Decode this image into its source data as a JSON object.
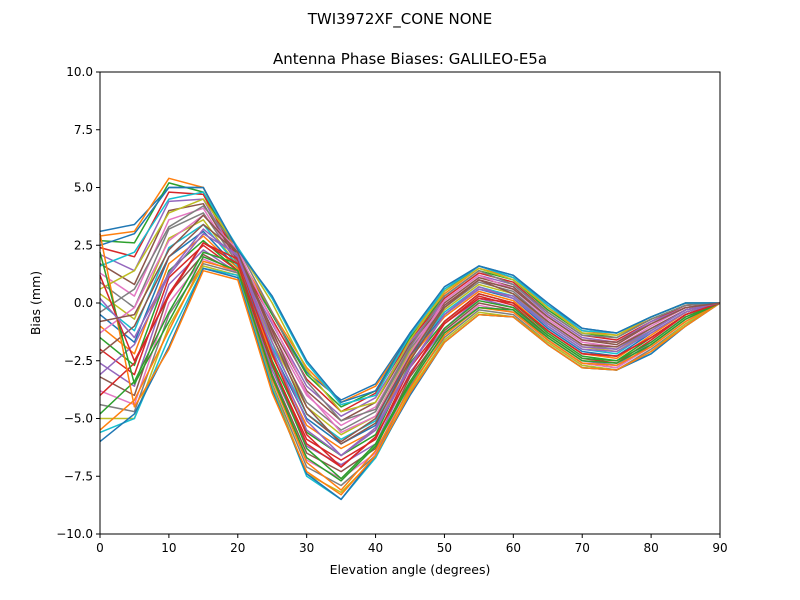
{
  "figure": {
    "suptitle": "TWI3972XF_CONE  NONE"
  },
  "chart_data": {
    "type": "line",
    "title": "Antenna Phase Biases: GALILEO-E5a",
    "xlabel": "Elevation angle (degrees)",
    "ylabel": "Bias (mm)",
    "xlim": [
      0,
      90
    ],
    "ylim": [
      -10,
      10
    ],
    "xticks": [
      0,
      10,
      20,
      30,
      40,
      50,
      60,
      70,
      80,
      90
    ],
    "yticks": [
      -10,
      -7.5,
      -5,
      -2.5,
      0,
      2.5,
      5,
      7.5,
      10
    ],
    "xtick_labels": [
      "0",
      "10",
      "20",
      "30",
      "40",
      "50",
      "60",
      "70",
      "80",
      "90"
    ],
    "ytick_labels": [
      "−10.0",
      "−7.5",
      "−5.0",
      "−2.5",
      "0.0",
      "2.5",
      "5.0",
      "7.5",
      "10.0"
    ],
    "grid": false,
    "legend": "none",
    "x": [
      0,
      5,
      10,
      15,
      20,
      25,
      30,
      35,
      40,
      45,
      50,
      55,
      60,
      65,
      70,
      75,
      80,
      85,
      90
    ],
    "color_cycle": [
      "#1f77b4",
      "#ff7f0e",
      "#2ca02c",
      "#d62728",
      "#9467bd",
      "#8c564b",
      "#e377c2",
      "#7f7f7f",
      "#bcbd22",
      "#17becf"
    ],
    "series": [
      {
        "values": [
          3.1,
          3.4,
          5.0,
          5.0,
          2.0,
          -0.5,
          -3.0,
          -4.2,
          -3.5,
          -1.3,
          0.5,
          1.6,
          1.2,
          -0.1,
          -1.1,
          -1.3,
          -0.6,
          0.0,
          0.0
        ]
      },
      {
        "values": [
          2.9,
          3.1,
          5.4,
          5.0,
          2.1,
          -0.4,
          -2.8,
          -4.3,
          -3.6,
          -1.4,
          0.4,
          1.5,
          1.1,
          -0.2,
          -1.2,
          -1.4,
          -0.7,
          -0.1,
          0.0
        ]
      },
      {
        "values": [
          2.7,
          2.6,
          5.2,
          4.8,
          2.0,
          -0.5,
          -3.1,
          -4.5,
          -3.8,
          -1.5,
          0.3,
          1.4,
          1.0,
          -0.3,
          -1.3,
          -1.5,
          -0.7,
          -0.1,
          0.0
        ]
      },
      {
        "values": [
          2.4,
          2.0,
          4.8,
          4.7,
          1.9,
          -0.7,
          -3.3,
          -4.7,
          -3.9,
          -1.6,
          0.2,
          1.3,
          0.9,
          -0.4,
          -1.4,
          -1.6,
          -0.8,
          -0.1,
          0.0
        ]
      },
      {
        "values": [
          2.1,
          1.4,
          4.4,
          4.5,
          1.8,
          -0.9,
          -3.6,
          -4.9,
          -4.1,
          -1.7,
          0.1,
          1.2,
          0.8,
          -0.5,
          -1.5,
          -1.7,
          -0.8,
          -0.2,
          0.0
        ]
      },
      {
        "values": [
          1.7,
          0.8,
          4.0,
          4.3,
          1.8,
          -1.1,
          -3.8,
          -5.1,
          -4.3,
          -1.8,
          0.0,
          1.1,
          0.7,
          -0.6,
          -1.6,
          -1.8,
          -0.9,
          -0.2,
          0.0
        ]
      },
      {
        "values": [
          1.3,
          0.3,
          3.6,
          4.1,
          1.7,
          -1.3,
          -4.0,
          -5.3,
          -4.5,
          -1.9,
          -0.1,
          1.0,
          0.6,
          -0.7,
          -1.7,
          -1.9,
          -1.0,
          -0.2,
          0.0
        ]
      },
      {
        "values": [
          0.9,
          -0.2,
          3.2,
          3.9,
          1.7,
          -1.5,
          -4.3,
          -5.5,
          -4.7,
          -2.0,
          -0.2,
          0.9,
          0.5,
          -0.8,
          -1.8,
          -2.0,
          -1.1,
          -0.3,
          0.0
        ]
      },
      {
        "values": [
          0.4,
          -0.7,
          2.8,
          3.6,
          1.6,
          -1.7,
          -4.5,
          -5.7,
          -4.9,
          -2.1,
          -0.3,
          0.8,
          0.4,
          -0.9,
          -1.9,
          -2.1,
          -1.2,
          -0.3,
          0.0
        ]
      },
      {
        "values": [
          0.0,
          -1.2,
          2.4,
          3.4,
          1.6,
          -1.9,
          -4.8,
          -5.9,
          -5.1,
          -2.2,
          -0.4,
          0.7,
          0.3,
          -1.0,
          -2.0,
          -2.2,
          -1.2,
          -0.3,
          0.0
        ]
      },
      {
        "values": [
          -0.5,
          -1.7,
          2.0,
          3.1,
          1.5,
          -2.1,
          -5.0,
          -6.1,
          -5.3,
          -2.3,
          -0.5,
          0.6,
          0.2,
          -1.1,
          -2.1,
          -2.3,
          -1.3,
          -0.4,
          0.0
        ]
      },
      {
        "values": [
          -1.0,
          -2.2,
          1.7,
          2.9,
          1.5,
          -2.3,
          -5.3,
          -6.3,
          -5.5,
          -2.4,
          -0.6,
          0.5,
          0.1,
          -1.2,
          -2.2,
          -2.4,
          -1.4,
          -0.4,
          0.0
        ]
      },
      {
        "values": [
          -1.5,
          -2.7,
          1.4,
          2.7,
          1.4,
          -2.5,
          -5.6,
          -6.6,
          -5.7,
          -2.6,
          -0.8,
          0.4,
          0.0,
          -1.3,
          -2.3,
          -2.5,
          -1.5,
          -0.5,
          0.0
        ]
      },
      {
        "values": [
          -2.0,
          -3.1,
          1.1,
          2.5,
          1.4,
          -2.7,
          -5.9,
          -6.8,
          -5.9,
          -2.8,
          -0.9,
          0.3,
          -0.1,
          -1.4,
          -2.4,
          -2.6,
          -1.6,
          -0.5,
          0.0
        ]
      },
      {
        "values": [
          -2.6,
          -3.6,
          0.8,
          2.3,
          1.3,
          -2.9,
          -6.2,
          -7.0,
          -6.1,
          -3.0,
          -1.1,
          0.2,
          -0.2,
          -1.5,
          -2.5,
          -2.7,
          -1.7,
          -0.6,
          0.0
        ]
      },
      {
        "values": [
          -3.2,
          -4.0,
          0.4,
          2.1,
          1.3,
          -3.1,
          -6.5,
          -7.3,
          -6.3,
          -3.2,
          -1.2,
          0.0,
          -0.3,
          -1.6,
          -2.6,
          -2.8,
          -1.8,
          -0.7,
          0.0
        ]
      },
      {
        "values": [
          -3.8,
          -4.4,
          0.0,
          1.9,
          1.3,
          -3.3,
          -6.8,
          -7.6,
          -6.5,
          -3.4,
          -1.3,
          -0.1,
          -0.4,
          -1.6,
          -2.6,
          -2.8,
          -1.9,
          -0.8,
          0.0
        ]
      },
      {
        "values": [
          -4.4,
          -4.7,
          -0.5,
          1.7,
          1.3,
          -3.5,
          -7.1,
          -7.9,
          -6.6,
          -3.6,
          -1.5,
          -0.3,
          -0.5,
          -1.7,
          -2.7,
          -2.9,
          -2.0,
          -0.9,
          0.0
        ]
      },
      {
        "values": [
          -5.0,
          -5.0,
          -1.0,
          1.6,
          1.2,
          -3.6,
          -7.4,
          -8.2,
          -6.7,
          -3.8,
          -1.6,
          -0.4,
          -0.6,
          -1.7,
          -2.7,
          -2.9,
          -2.1,
          -0.9,
          0.0
        ]
      },
      {
        "values": [
          -5.6,
          -5.0,
          -1.5,
          1.5,
          1.2,
          -3.7,
          -7.5,
          -8.5,
          -6.7,
          -3.9,
          -1.7,
          -0.5,
          -0.6,
          -1.8,
          -2.8,
          -2.9,
          -2.2,
          -1.0,
          0.0
        ]
      },
      {
        "values": [
          -6.0,
          -4.8,
          -1.9,
          1.5,
          1.1,
          -3.8,
          -7.4,
          -8.5,
          -6.6,
          -4.0,
          -1.7,
          -0.5,
          -0.6,
          -1.8,
          -2.8,
          -2.9,
          -2.2,
          -1.0,
          0.0
        ]
      },
      {
        "values": [
          -5.5,
          -4.2,
          -1.2,
          1.8,
          1.4,
          -3.3,
          -6.9,
          -8.1,
          -6.4,
          -3.7,
          -1.4,
          -0.2,
          -0.4,
          -1.6,
          -2.6,
          -2.7,
          -1.9,
          -0.8,
          0.0
        ]
      },
      {
        "values": [
          -4.8,
          -3.4,
          -0.4,
          2.2,
          1.7,
          -2.7,
          -6.3,
          -7.6,
          -6.1,
          -3.4,
          -1.1,
          0.1,
          -0.2,
          -1.4,
          -2.4,
          -2.5,
          -1.7,
          -0.6,
          0.0
        ]
      },
      {
        "values": [
          -4.0,
          -2.6,
          0.4,
          2.6,
          1.9,
          -2.2,
          -5.7,
          -7.1,
          -5.8,
          -3.1,
          -0.8,
          0.4,
          0.0,
          -1.2,
          -2.2,
          -2.3,
          -1.5,
          -0.5,
          0.0
        ]
      },
      {
        "values": [
          -3.1,
          -1.8,
          1.2,
          3.0,
          2.1,
          -1.7,
          -5.1,
          -6.6,
          -5.5,
          -2.8,
          -0.5,
          0.7,
          0.2,
          -1.0,
          -2.0,
          -2.1,
          -1.3,
          -0.4,
          0.0
        ]
      },
      {
        "values": [
          -2.2,
          -1.0,
          2.0,
          3.4,
          2.2,
          -1.2,
          -4.5,
          -6.1,
          -5.2,
          -2.5,
          -0.2,
          1.0,
          0.4,
          -0.8,
          -1.8,
          -1.9,
          -1.1,
          -0.3,
          0.0
        ]
      },
      {
        "values": [
          -1.3,
          -0.2,
          2.7,
          3.8,
          2.3,
          -0.8,
          -3.9,
          -5.6,
          -4.9,
          -2.2,
          0.1,
          1.2,
          0.6,
          -0.6,
          -1.6,
          -1.7,
          -0.9,
          -0.2,
          0.0
        ]
      },
      {
        "values": [
          -0.4,
          0.6,
          3.3,
          4.2,
          2.4,
          -0.4,
          -3.4,
          -5.1,
          -4.6,
          -1.9,
          0.3,
          1.4,
          0.8,
          -0.4,
          -1.4,
          -1.5,
          -0.7,
          -0.1,
          0.0
        ]
      },
      {
        "values": [
          0.6,
          1.4,
          3.9,
          4.5,
          2.4,
          0.0,
          -2.9,
          -4.7,
          -4.3,
          -1.6,
          0.5,
          1.5,
          1.0,
          -0.2,
          -1.3,
          -1.4,
          -0.6,
          0.0,
          0.0
        ]
      },
      {
        "values": [
          1.6,
          2.2,
          4.5,
          4.8,
          2.4,
          0.2,
          -2.6,
          -4.4,
          -4.0,
          -1.4,
          0.6,
          1.6,
          1.1,
          -0.1,
          -1.2,
          -1.3,
          -0.6,
          0.0,
          0.0
        ]
      },
      {
        "values": [
          2.5,
          3.0,
          5.0,
          5.0,
          2.3,
          0.3,
          -2.5,
          -4.3,
          -3.8,
          -1.3,
          0.7,
          1.6,
          1.2,
          0.0,
          -1.1,
          -1.3,
          -0.6,
          0.0,
          0.0
        ]
      },
      {
        "values": [
          3.0,
          -4.5,
          -2.0,
          1.4,
          1.0,
          -3.9,
          -7.3,
          -8.3,
          -6.6,
          -3.9,
          -1.7,
          -0.5,
          -0.6,
          -1.8,
          -2.8,
          -2.9,
          -2.1,
          -1.0,
          0.0
        ]
      },
      {
        "values": [
          2.2,
          -3.5,
          -0.8,
          2.0,
          1.4,
          -3.2,
          -6.7,
          -7.7,
          -6.2,
          -3.5,
          -1.3,
          -0.2,
          -0.3,
          -1.5,
          -2.5,
          -2.6,
          -1.8,
          -0.7,
          0.0
        ]
      },
      {
        "values": [
          1.2,
          -2.5,
          0.3,
          2.6,
          1.7,
          -2.6,
          -6.1,
          -7.1,
          -5.8,
          -3.1,
          -0.9,
          0.2,
          0.0,
          -1.2,
          -2.2,
          -2.3,
          -1.5,
          -0.5,
          0.0
        ]
      },
      {
        "values": [
          0.2,
          -1.5,
          1.3,
          3.2,
          2.0,
          -2.0,
          -5.5,
          -6.6,
          -5.4,
          -2.7,
          -0.5,
          0.6,
          0.3,
          -0.9,
          -1.9,
          -2.0,
          -1.2,
          -0.3,
          0.0
        ]
      },
      {
        "values": [
          -0.8,
          -0.5,
          2.3,
          3.8,
          2.2,
          -1.4,
          -4.8,
          -6.0,
          -5.0,
          -2.3,
          -0.1,
          1.0,
          0.6,
          -0.6,
          -1.6,
          -1.7,
          -0.9,
          -0.2,
          0.0
        ]
      }
    ]
  }
}
